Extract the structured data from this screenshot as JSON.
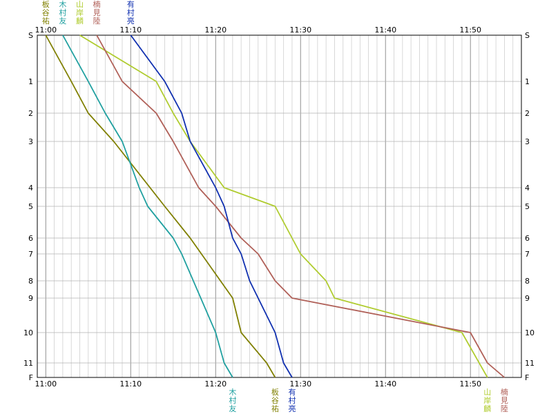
{
  "chart_data": {
    "type": "line",
    "title": "",
    "xlabel": "",
    "ylabel": "",
    "x_ticks": [
      "11:00",
      "11:10",
      "11:20",
      "11:30",
      "11:40",
      "11:50"
    ],
    "y_ticks": [
      "S",
      "1",
      "2",
      "3",
      "4",
      "5",
      "6",
      "7",
      "8",
      "9",
      "10",
      "11",
      "F"
    ],
    "xlim": [
      "10:59",
      "11:56"
    ],
    "grid": true,
    "series": [
      {
        "name": "板谷祐",
        "color": "#808000",
        "points": [
          [
            "11:00",
            "S"
          ],
          [
            "11:03",
            "1"
          ],
          [
            "11:05",
            "2"
          ],
          [
            "11:08",
            "3"
          ],
          [
            "11:14",
            "5"
          ],
          [
            "11:17",
            "6"
          ],
          [
            "11:22",
            "9"
          ],
          [
            "11:23",
            "10"
          ],
          [
            "11:26",
            "11"
          ],
          [
            "11:27",
            "F"
          ]
        ]
      },
      {
        "name": "木村友",
        "color": "#20a0a0",
        "points": [
          [
            "11:02",
            "S"
          ],
          [
            "11:05",
            "1"
          ],
          [
            "11:07",
            "2"
          ],
          [
            "11:09",
            "3"
          ],
          [
            "11:11",
            "4"
          ],
          [
            "11:12",
            "5"
          ],
          [
            "11:15",
            "6"
          ],
          [
            "11:16",
            "7"
          ],
          [
            "11:20",
            "10"
          ],
          [
            "11:21",
            "11"
          ],
          [
            "11:22",
            "F"
          ]
        ]
      },
      {
        "name": "山岸麟",
        "color": "#b0cc30",
        "points": [
          [
            "11:04",
            "S"
          ],
          [
            "11:13",
            "1"
          ],
          [
            "11:15",
            "2"
          ],
          [
            "11:17",
            "3"
          ],
          [
            "11:21",
            "4"
          ],
          [
            "11:27",
            "5"
          ],
          [
            "11:29",
            "6"
          ],
          [
            "11:30",
            "7"
          ],
          [
            "11:33",
            "8"
          ],
          [
            "11:34",
            "9"
          ],
          [
            "11:49",
            "10"
          ],
          [
            "11:52",
            "F"
          ]
        ]
      },
      {
        "name": "楠見陸",
        "color": "#b06058",
        "points": [
          [
            "11:06",
            "S"
          ],
          [
            "11:09",
            "1"
          ],
          [
            "11:13",
            "2"
          ],
          [
            "11:15",
            "3"
          ],
          [
            "11:18",
            "4"
          ],
          [
            "11:20",
            "5"
          ],
          [
            "11:23",
            "6"
          ],
          [
            "11:25",
            "7"
          ],
          [
            "11:27",
            "8"
          ],
          [
            "11:29",
            "9"
          ],
          [
            "11:50",
            "10"
          ],
          [
            "11:52",
            "11"
          ],
          [
            "11:54",
            "F"
          ]
        ]
      },
      {
        "name": "有村亮",
        "color": "#1030b0",
        "points": [
          [
            "11:10",
            "S"
          ],
          [
            "11:14",
            "1"
          ],
          [
            "11:16",
            "2"
          ],
          [
            "11:17",
            "3"
          ],
          [
            "11:20",
            "4"
          ],
          [
            "11:21",
            "5"
          ],
          [
            "11:22",
            "6"
          ],
          [
            "11:23",
            "7"
          ],
          [
            "11:24",
            "8"
          ],
          [
            "11:25",
            "9"
          ],
          [
            "11:27",
            "10"
          ],
          [
            "11:28",
            "11"
          ],
          [
            "11:29",
            "F"
          ]
        ]
      }
    ]
  }
}
